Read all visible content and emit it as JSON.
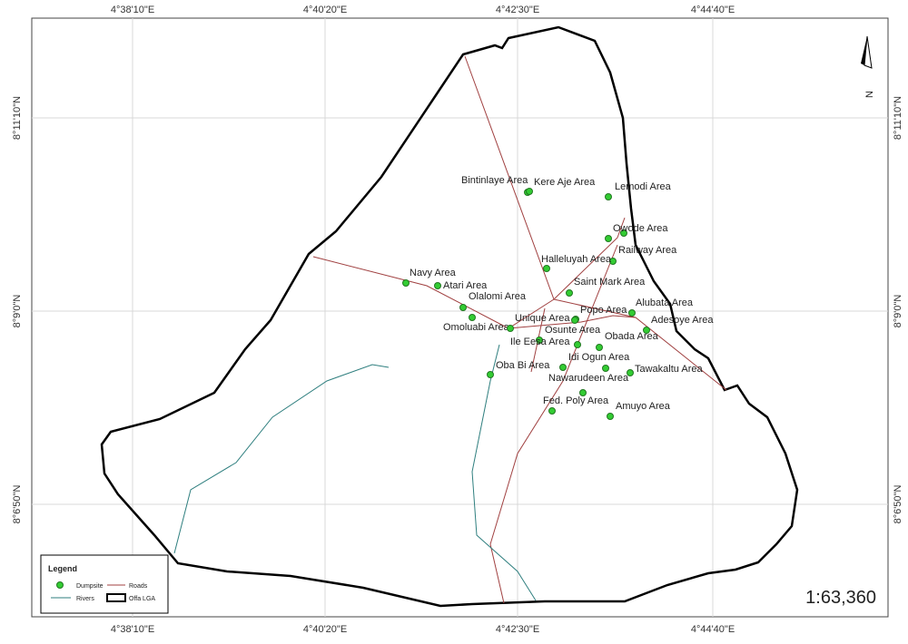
{
  "map": {
    "x_labels": [
      "4°38'10\"E",
      "4°40'20\"E",
      "4°42'30\"E",
      "4°44'40\"E"
    ],
    "y_labels": [
      "8°11'10\"N",
      "8°9'0\"N",
      "8°6'50\"N"
    ],
    "sites": [
      "Bintinlaye Area",
      "Kere Aje Area",
      "Lemodi Area",
      "Owode Area",
      "Railway Area",
      "Halleluyah Area",
      "Navy Area",
      "Atari Area",
      "Saint Mark Area",
      "Olalomi Area",
      "Alubata Area",
      "Popo Area",
      "Unique Area",
      "Adesoye Area",
      "Omoluabi Area",
      "Osunte Area",
      "Ile Eesa Area",
      "Obada Area",
      "Idi Ogun Area",
      "Oba Bi Area",
      "Nawarudeen Area",
      "Tawakaltu Area",
      "Fed. Poly Area",
      "Amuyo Area"
    ],
    "legend": {
      "title": "Legend",
      "items": [
        "Dumpsite",
        "Roads",
        "Rivers",
        "Offa LGA"
      ]
    },
    "scale": "1:63,360",
    "north": "N"
  }
}
